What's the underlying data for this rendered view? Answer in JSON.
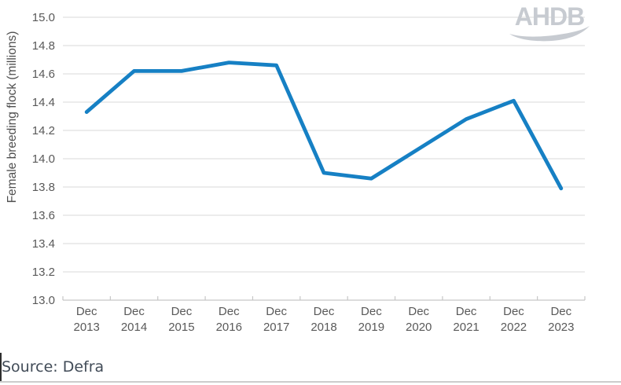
{
  "chart_data": {
    "type": "line",
    "title": "",
    "xlabel": "",
    "ylabel": "Female breeding flock (millions)",
    "categories": [
      "Dec 2013",
      "Dec 2014",
      "Dec 2015",
      "Dec 2016",
      "Dec 2017",
      "Dec 2018",
      "Dec 2019",
      "Dec 2020",
      "Dec 2021",
      "Dec 2022",
      "Dec 2023"
    ],
    "series": [
      {
        "name": "Female breeding flock",
        "values": [
          14.33,
          14.62,
          14.62,
          14.68,
          14.66,
          13.9,
          13.86,
          14.07,
          14.28,
          14.41,
          13.79
        ]
      }
    ],
    "ylim": [
      13.0,
      15.0
    ],
    "yticks": [
      "15.0",
      "14.8",
      "14.6",
      "14.4",
      "14.2",
      "14.0",
      "13.8",
      "13.6",
      "13.4",
      "13.2",
      "13.0"
    ],
    "grid": "horizontal",
    "legend": "none",
    "line_width": 4.8
  },
  "branding": {
    "logo_text": "AHDB"
  },
  "footer": {
    "source_label": "Source: Defra"
  },
  "colors": {
    "line": "#1680c4",
    "grid": "#d9d9d9",
    "axis": "#c6c6c6",
    "tick-label": "#595959",
    "axis-title": "#4f4f4f",
    "logo": "#c7cbd1",
    "source-text": "#414b57",
    "divider": "#cccccc",
    "cursor": "#2e2e2e"
  }
}
